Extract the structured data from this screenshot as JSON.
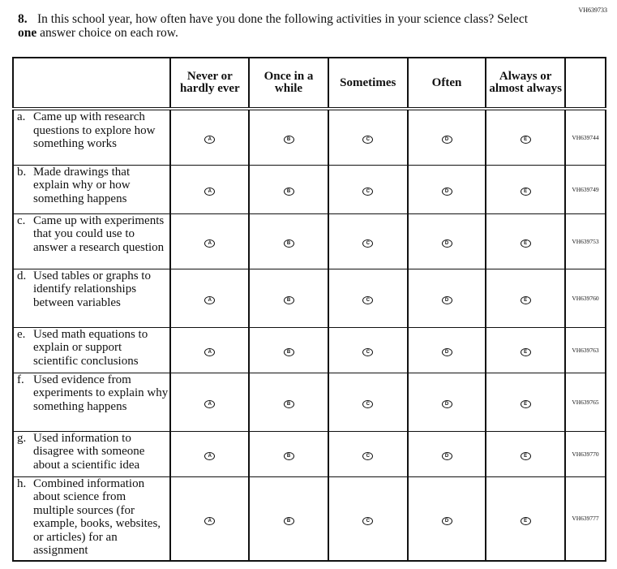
{
  "question_id": "VH639733",
  "question": {
    "number": "8.",
    "text_before": "In this school year, how often have you done the following activities in your science class? Select ",
    "text_bold": "one",
    "text_after": " answer choice on each row."
  },
  "columns": [
    "Never or hardly ever",
    "Once in a while",
    "Sometimes",
    "Often",
    "Always or almost always"
  ],
  "bubble_letters": [
    "A",
    "B",
    "C",
    "D",
    "E"
  ],
  "rows": [
    {
      "letter": "a.",
      "text": "Came up with research questions to explore how something works",
      "code": "VH639744"
    },
    {
      "letter": "b.",
      "text": "Made drawings that explain why or how something happens",
      "code": "VH639749"
    },
    {
      "letter": "c.",
      "text": "Came up with experiments that you could use to answer a research question",
      "code": "VH639753"
    },
    {
      "letter": "d.",
      "text": "Used tables or graphs to identify relationships between variables",
      "code": "VH639760"
    },
    {
      "letter": "e.",
      "text": "Used math equations to explain or support scientific conclusions",
      "code": "VH639763"
    },
    {
      "letter": "f.",
      "text": "Used evidence from experiments to explain why something happens",
      "code": "VH639765"
    },
    {
      "letter": "g.",
      "text": "Used information to disagree with someone about a scientific idea",
      "code": "VH639770"
    },
    {
      "letter": "h.",
      "text": "Combined information about science from multiple sources (for example, books, websites, or articles) for an assignment",
      "code": "VH639777"
    }
  ]
}
